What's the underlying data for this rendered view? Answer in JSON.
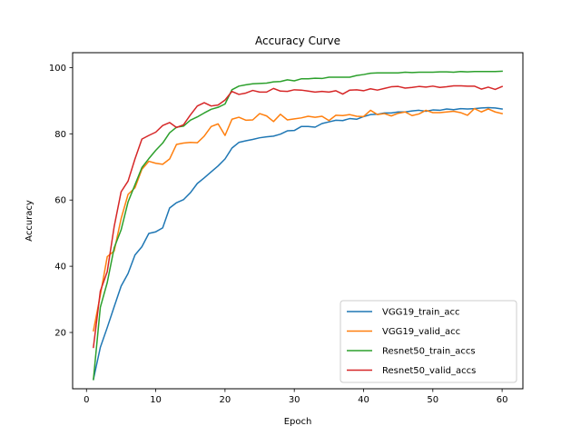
{
  "chart_data": {
    "type": "line",
    "title": "Accuracy Curve",
    "xlabel": "Epoch",
    "ylabel": "Accuracy",
    "xlim": [
      -2,
      63
    ],
    "ylim": [
      3,
      104.5
    ],
    "xticks": [
      0,
      10,
      20,
      30,
      40,
      50,
      60
    ],
    "yticks": [
      20,
      40,
      60,
      80,
      100
    ],
    "grid": false,
    "legend_position": "lower right",
    "x": [
      1,
      2,
      3,
      4,
      5,
      6,
      7,
      8,
      9,
      10,
      11,
      12,
      13,
      14,
      15,
      16,
      17,
      18,
      19,
      20,
      21,
      22,
      23,
      24,
      25,
      26,
      27,
      28,
      29,
      30,
      31,
      32,
      33,
      34,
      35,
      36,
      37,
      38,
      39,
      40,
      41,
      42,
      43,
      44,
      45,
      46,
      47,
      48,
      49,
      50,
      51,
      52,
      53,
      54,
      55,
      56,
      57,
      58,
      59,
      60
    ],
    "series": [
      {
        "name": "VGG19_train_acc",
        "color": "#1f77b4",
        "values": [
          5.8,
          15.5,
          21.5,
          27.8,
          34.0,
          37.8,
          43.4,
          45.9,
          49.9,
          50.4,
          51.6,
          57.6,
          59.2,
          60.1,
          62.2,
          65.0,
          66.7,
          68.5,
          70.3,
          72.4,
          75.7,
          77.4,
          77.9,
          78.3,
          78.8,
          79.1,
          79.3,
          79.9,
          80.9,
          81.0,
          82.2,
          82.2,
          82.0,
          83.1,
          83.6,
          84.1,
          84.0,
          84.6,
          84.4,
          85.2,
          85.8,
          85.9,
          86.3,
          86.3,
          86.6,
          86.6,
          86.9,
          87.1,
          86.8,
          87.2,
          87.1,
          87.5,
          87.3,
          87.6,
          87.5,
          87.6,
          87.8,
          87.9,
          87.8,
          87.5
        ]
      },
      {
        "name": "VGG19_valid_acc",
        "color": "#ff7f0e",
        "values": [
          20.5,
          31.3,
          42.9,
          44.6,
          54.4,
          61.7,
          63.7,
          69.3,
          71.7,
          71.1,
          70.8,
          72.4,
          76.8,
          77.2,
          77.4,
          77.3,
          79.3,
          82.2,
          83.0,
          79.5,
          84.4,
          85.0,
          84.1,
          84.2,
          86.1,
          85.4,
          83.7,
          85.9,
          84.2,
          84.5,
          84.8,
          85.3,
          85.0,
          85.3,
          84.0,
          85.6,
          85.5,
          85.8,
          85.3,
          85.2,
          87.1,
          85.8,
          86.1,
          85.4,
          86.2,
          86.6,
          85.5,
          86.0,
          87.1,
          86.4,
          86.4,
          86.6,
          86.8,
          86.4,
          85.6,
          87.6,
          86.6,
          87.5,
          86.6,
          86.1
        ]
      },
      {
        "name": "Resnet50_train_accs",
        "color": "#2ca02c",
        "values": [
          5.8,
          27.6,
          35.1,
          45.6,
          51.0,
          59.4,
          64.6,
          69.8,
          72.5,
          75.0,
          77.2,
          80.3,
          82.0,
          82.3,
          84.1,
          85.1,
          86.3,
          87.4,
          88.0,
          89.0,
          93.3,
          94.4,
          94.8,
          95.1,
          95.2,
          95.3,
          95.7,
          95.8,
          96.3,
          96.0,
          96.6,
          96.6,
          96.8,
          96.7,
          97.1,
          97.1,
          97.1,
          97.1,
          97.6,
          97.9,
          98.3,
          98.4,
          98.4,
          98.4,
          98.4,
          98.6,
          98.5,
          98.6,
          98.6,
          98.6,
          98.7,
          98.7,
          98.6,
          98.8,
          98.7,
          98.8,
          98.8,
          98.8,
          98.8,
          98.9
        ]
      },
      {
        "name": "Resnet50_valid_accs",
        "color": "#d62728",
        "values": [
          15.5,
          32.5,
          38.4,
          52.0,
          62.5,
          65.7,
          72.4,
          78.4,
          79.5,
          80.5,
          82.5,
          83.4,
          81.9,
          82.7,
          85.7,
          88.4,
          89.4,
          88.4,
          88.7,
          90.2,
          92.8,
          91.9,
          92.3,
          93.1,
          92.6,
          92.6,
          93.7,
          92.9,
          92.8,
          93.3,
          93.2,
          92.9,
          92.6,
          92.8,
          92.6,
          93.0,
          92.0,
          93.2,
          93.3,
          93.0,
          93.6,
          93.2,
          93.7,
          94.2,
          94.3,
          93.8,
          94.0,
          94.3,
          94.1,
          94.4,
          94.0,
          94.2,
          94.5,
          94.5,
          94.4,
          94.4,
          93.5,
          94.1,
          93.4,
          94.3
        ]
      }
    ]
  }
}
